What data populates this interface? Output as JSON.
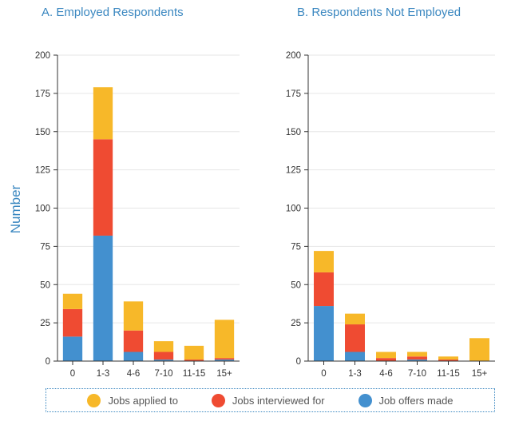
{
  "y_axis_label": "Number",
  "colors": {
    "applied": "#f7b829",
    "interviewed": "#ef4b32",
    "offers": "#4390cf"
  },
  "legend": {
    "applied": "Jobs applied to",
    "interviewed": "Jobs interviewed for",
    "offers": "Job offers made"
  },
  "chart_data": [
    {
      "type": "bar",
      "stacked": true,
      "title": "A. Employed Respondents",
      "categories": [
        "0",
        "1-3",
        "4-6",
        "7-10",
        "11-15",
        "15+"
      ],
      "ylim": [
        0,
        200
      ],
      "yticks": [
        0,
        25,
        50,
        75,
        100,
        125,
        150,
        175,
        200
      ],
      "ylabel": "Number",
      "grid": true,
      "series": [
        {
          "name": "Job offers made",
          "key": "offers",
          "values": [
            16,
            82,
            6,
            1,
            0,
            1
          ]
        },
        {
          "name": "Jobs interviewed for",
          "key": "interviewed",
          "values": [
            18,
            63,
            14,
            5,
            1,
            1
          ]
        },
        {
          "name": "Jobs applied to",
          "key": "applied",
          "values": [
            10,
            34,
            19,
            7,
            9,
            25
          ]
        }
      ]
    },
    {
      "type": "bar",
      "stacked": true,
      "title": "B. Respondents Not Employed",
      "categories": [
        "0",
        "1-3",
        "4-6",
        "7-10",
        "11-15",
        "15+"
      ],
      "ylim": [
        0,
        200
      ],
      "yticks": [
        0,
        25,
        50,
        75,
        100,
        125,
        150,
        175,
        200
      ],
      "ylabel": "",
      "grid": true,
      "series": [
        {
          "name": "Job offers made",
          "key": "offers",
          "values": [
            36,
            6,
            0,
            1,
            0,
            0
          ]
        },
        {
          "name": "Jobs interviewed for",
          "key": "interviewed",
          "values": [
            22,
            18,
            2,
            2,
            1,
            0
          ]
        },
        {
          "name": "Jobs applied to",
          "key": "applied",
          "values": [
            14,
            7,
            4,
            3,
            2,
            15
          ]
        }
      ]
    }
  ]
}
